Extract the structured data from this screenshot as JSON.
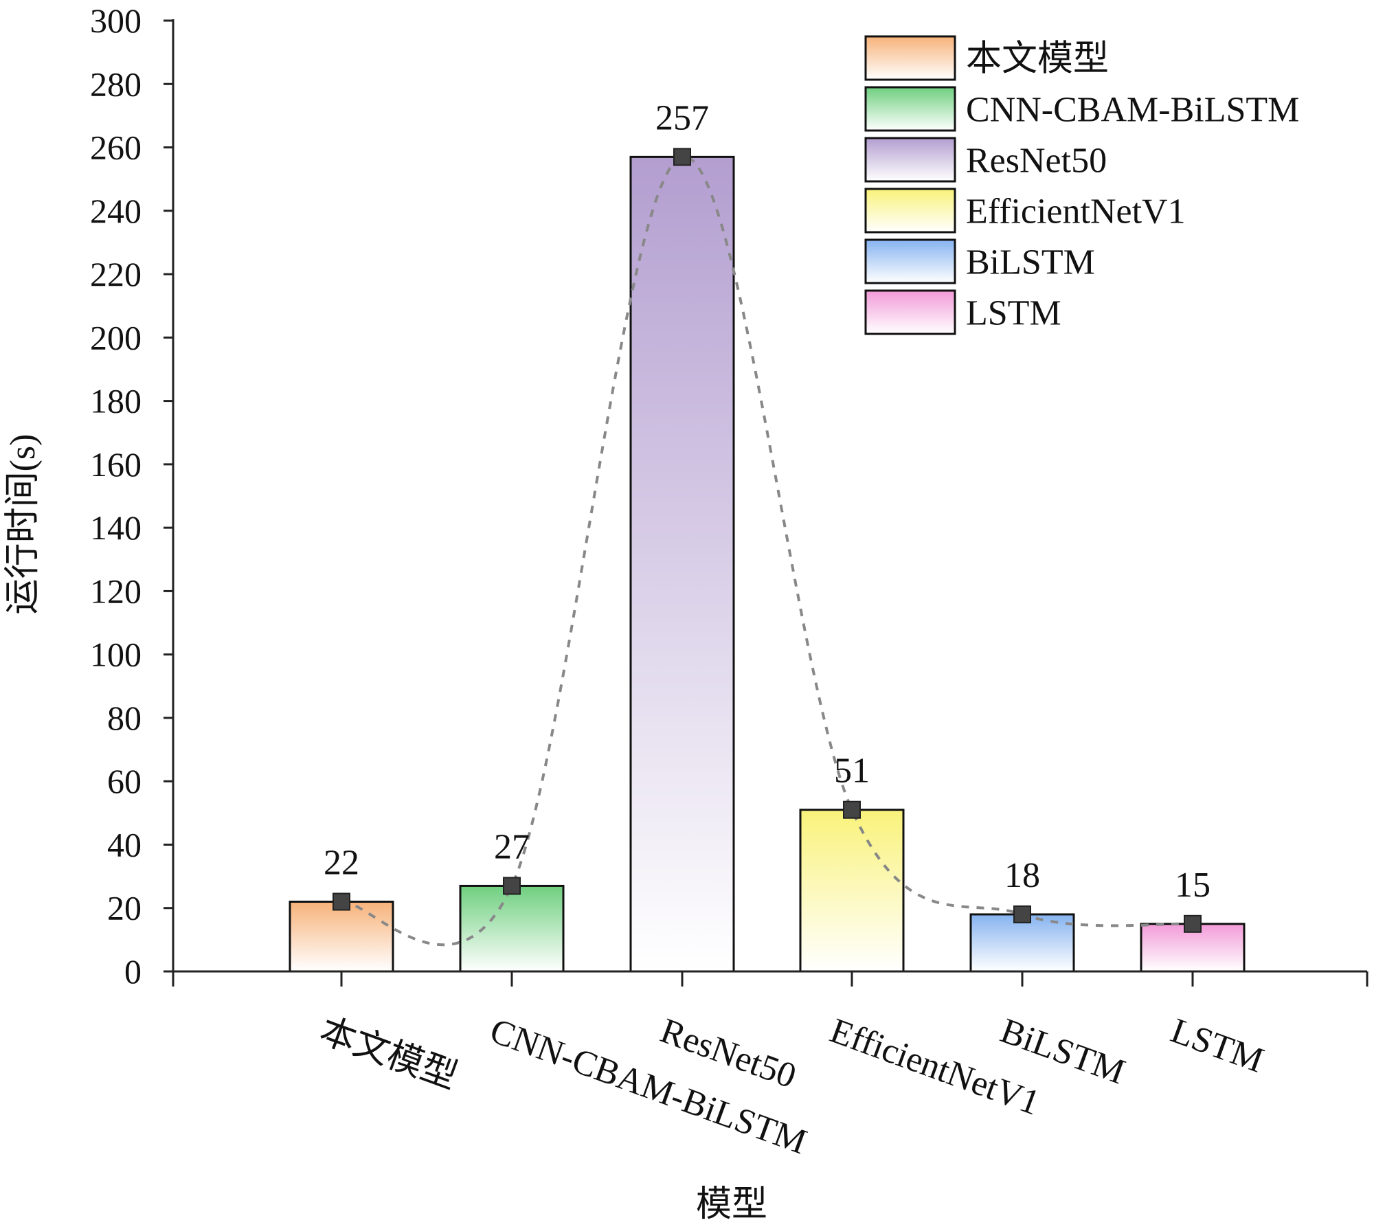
{
  "chart_data": {
    "type": "bar",
    "title": "",
    "xlabel": "模型",
    "ylabel": "运行时间(s)",
    "ylim": [
      0,
      300
    ],
    "yticks": [
      0,
      20,
      40,
      60,
      80,
      100,
      120,
      140,
      160,
      180,
      200,
      220,
      240,
      260,
      280,
      300
    ],
    "categories": [
      "本文模型",
      "CNN-CBAM-BiLSTM",
      "ResNet50",
      "EfficientNetV1",
      "BiLSTM",
      "LSTM"
    ],
    "values": [
      22,
      27,
      257,
      51,
      18,
      15
    ],
    "data_labels": [
      "22",
      "27",
      "257",
      "51",
      "18",
      "15"
    ],
    "overlay": {
      "type": "line",
      "style": "dashed",
      "smooth": true,
      "markers": "square"
    },
    "legend": {
      "placement": "top-right",
      "entries": [
        "本文模型",
        "CNN-CBAM-BiLSTM",
        "ResNet50",
        "EfficientNetV1",
        "BiLSTM",
        "LSTM"
      ]
    },
    "grid": false,
    "colors": [
      "#f7b27a",
      "#6fcf7f",
      "#b39ed0",
      "#f9f27a",
      "#86b3f0",
      "#f29ad8"
    ]
  }
}
